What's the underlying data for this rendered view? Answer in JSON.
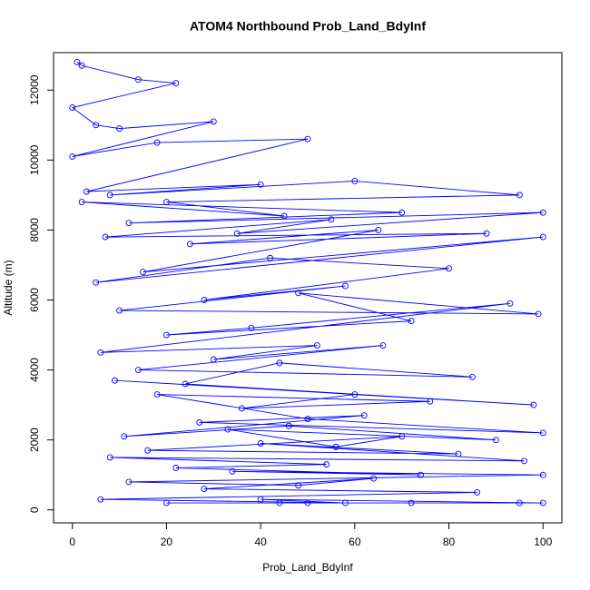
{
  "chart_data": {
    "type": "line",
    "title": "ATOM4 Northbound Prob_Land_BdyInf",
    "x_label": "Prob_Land_BdyInf",
    "y_label": "Altitude (m)",
    "x": [
      1,
      2,
      14,
      22,
      0,
      5,
      10,
      30,
      0,
      18,
      50,
      3,
      40,
      8,
      60,
      95,
      20,
      45,
      2,
      70,
      12,
      100,
      35,
      55,
      7,
      88,
      25,
      65,
      15,
      100,
      5,
      42,
      80,
      28,
      58,
      10,
      99,
      48,
      72,
      20,
      38,
      93,
      6,
      52,
      30,
      66,
      14,
      85,
      44,
      24,
      98,
      9,
      60,
      36,
      76,
      18,
      50,
      100,
      27,
      62,
      11,
      46,
      90,
      33,
      56,
      70,
      16,
      82,
      40,
      96,
      8,
      54,
      22,
      74,
      34,
      100,
      12,
      48,
      64,
      28,
      86,
      6,
      58,
      40,
      100,
      72,
      20,
      50,
      44,
      95
    ],
    "series": [
      {
        "color": "#0000ff",
        "values": [
          12800,
          12700,
          12300,
          12200,
          11500,
          11000,
          10900,
          11100,
          10100,
          10500,
          10600,
          9100,
          9300,
          9000,
          9400,
          9000,
          8800,
          8400,
          8800,
          8500,
          8200,
          8500,
          7900,
          8300,
          7800,
          7900,
          7600,
          8000,
          6800,
          7800,
          6500,
          7200,
          6900,
          6000,
          6400,
          5700,
          5600,
          6200,
          5400,
          5000,
          5200,
          5900,
          4500,
          4700,
          4300,
          4700,
          4000,
          3800,
          4200,
          3600,
          3000,
          3700,
          3300,
          2900,
          3100,
          3300,
          2600,
          2200,
          2500,
          2700,
          2100,
          2400,
          2000,
          2300,
          1800,
          2100,
          1700,
          1600,
          1900,
          1400,
          1500,
          1300,
          1200,
          1000,
          1100,
          1000,
          800,
          700,
          900,
          600,
          500,
          300,
          200,
          300,
          200,
          200,
          200,
          200,
          200,
          200
        ]
      }
    ],
    "xlim": [
      -4,
      104
    ],
    "ylim": [
      -370,
      13070
    ],
    "xticks": [
      0,
      20,
      40,
      60,
      80,
      100
    ],
    "yticks": [
      0,
      2000,
      4000,
      6000,
      8000,
      10000,
      12000
    ]
  }
}
